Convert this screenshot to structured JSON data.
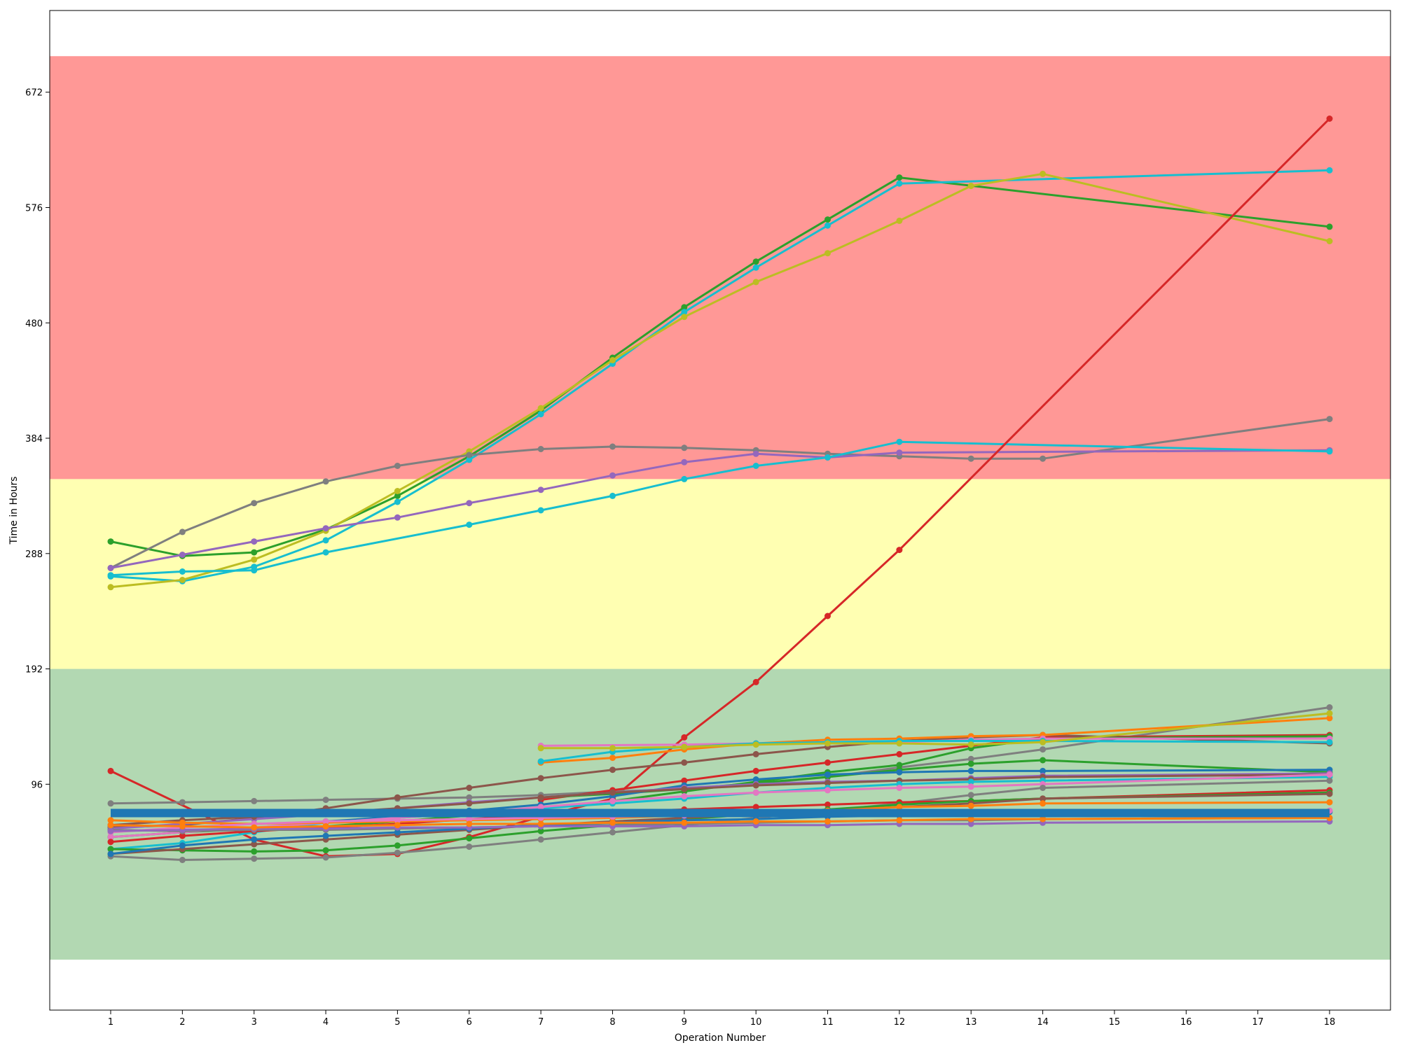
{
  "chart_data": {
    "type": "line",
    "title": "",
    "xlabel": "Operation Number",
    "ylabel": "Time in Hours",
    "xlim": [
      0.15,
      18.85
    ],
    "ylim": [
      -92,
      740
    ],
    "x_ticks": [
      1,
      2,
      3,
      4,
      5,
      6,
      7,
      8,
      9,
      10,
      11,
      12,
      13,
      14,
      15,
      16,
      17,
      18
    ],
    "y_ticks": [
      96,
      192,
      288,
      384,
      480,
      576,
      672
    ],
    "grid": false,
    "legend": "none",
    "bands": [
      {
        "y0": -50,
        "y1": 192,
        "color": "#b2d8b2"
      },
      {
        "y0": 192,
        "y1": 350,
        "color": "#ffffb2"
      },
      {
        "y0": 350,
        "y1": 702,
        "color": "#ff9896"
      }
    ],
    "threshold_line": {
      "y": 72,
      "x0": 1,
      "x1": 18,
      "color": "#1f77b4"
    },
    "series": [
      {
        "color": "#2ca02c",
        "x": [
          1,
          2,
          3,
          4,
          5,
          6,
          7,
          8,
          9,
          10,
          11,
          12,
          18
        ],
        "values": [
          298,
          286,
          289,
          308,
          336,
          369,
          407,
          451,
          493,
          531,
          566,
          601,
          560
        ]
      },
      {
        "color": "#17becf",
        "x": [
          1,
          2,
          3,
          4,
          5,
          6,
          7,
          8,
          9,
          10,
          11,
          12,
          18
        ],
        "values": [
          269,
          265,
          277,
          299,
          331,
          366,
          404,
          446,
          489,
          526,
          561,
          596,
          607
        ]
      },
      {
        "color": "#bcbd22",
        "x": [
          1,
          2,
          3,
          4,
          5,
          6,
          7,
          8,
          9,
          10,
          11,
          12,
          13,
          14,
          18
        ],
        "values": [
          260,
          266,
          283,
          307,
          340,
          373,
          409,
          449,
          485,
          514,
          538,
          565,
          594,
          604,
          548
        ]
      },
      {
        "color": "#7f7f7f",
        "x": [
          1,
          2,
          3,
          4,
          5,
          6,
          7,
          8,
          9,
          10,
          11,
          12,
          13,
          14,
          18
        ],
        "values": [
          276,
          306,
          330,
          348,
          361,
          370,
          375,
          377,
          376,
          374,
          371,
          369,
          367,
          367,
          400
        ]
      },
      {
        "color": "#9467bd",
        "x": [
          1,
          2,
          3,
          4,
          5,
          6,
          7,
          8,
          9,
          10,
          11,
          12,
          18
        ],
        "values": [
          276,
          287,
          298,
          309,
          318,
          330,
          341,
          353,
          364,
          371,
          368,
          372,
          374
        ]
      },
      {
        "color": "#17becf",
        "x": [
          1,
          2,
          3,
          4,
          6,
          7,
          8,
          9,
          10,
          11,
          12,
          18
        ],
        "values": [
          270,
          273,
          274,
          289,
          312,
          324,
          336,
          350,
          361,
          368,
          381,
          373
        ]
      },
      {
        "color": "#d62728",
        "x": [
          1,
          3,
          4,
          5,
          6,
          7,
          8,
          9,
          10,
          11,
          12,
          18
        ],
        "values": [
          107,
          50,
          36,
          38,
          52,
          69,
          84,
          135,
          181,
          236,
          291,
          650
        ]
      },
      {
        "color": "#7f7f7f",
        "x": [
          1,
          2,
          3,
          4,
          5,
          6,
          7,
          8,
          9,
          10,
          11,
          12,
          13,
          14,
          18
        ],
        "values": [
          80,
          81,
          82,
          83,
          84,
          85,
          87,
          90,
          92,
          96,
          102,
          110,
          117,
          125,
          160
        ]
      },
      {
        "color": "#d62728",
        "x": [
          7,
          8,
          9,
          10,
          11,
          12,
          13,
          14,
          18
        ],
        "values": [
          83,
          91,
          99,
          107,
          114,
          121,
          128,
          135,
          137
        ]
      },
      {
        "color": "#8c564b",
        "x": [
          1,
          2,
          3,
          4,
          5,
          6,
          7,
          8,
          9,
          10,
          11,
          12,
          13,
          14,
          18
        ],
        "values": [
          60,
          62,
          68,
          76,
          85,
          93,
          101,
          108,
          114,
          121,
          127,
          132,
          135,
          137,
          130
        ]
      },
      {
        "color": "#2ca02c",
        "x": [
          7,
          8,
          9,
          10,
          11,
          12,
          13,
          14,
          18
        ],
        "values": [
          85,
          88,
          92,
          97,
          102,
          108,
          113,
          116,
          106
        ]
      },
      {
        "color": "#2ca02c",
        "x": [
          1,
          2,
          3,
          4,
          5,
          6,
          7,
          8,
          9,
          10,
          11,
          12,
          13,
          14,
          18
        ],
        "values": [
          52,
          56,
          59,
          61,
          65,
          70,
          76,
          82,
          90,
          98,
          106,
          112,
          126,
          134,
          136
        ]
      },
      {
        "color": "#ff7f0e",
        "x": [
          7,
          8,
          9,
          10,
          11,
          12,
          13,
          14,
          18
        ],
        "values": [
          114,
          118,
          125,
          130,
          133,
          134,
          136,
          137,
          151
        ]
      },
      {
        "color": "#e377c2",
        "x": [
          7,
          9,
          10,
          11,
          12,
          13,
          14,
          18
        ],
        "values": [
          128,
          129,
          130,
          130,
          131,
          133,
          134,
          134
        ]
      },
      {
        "color": "#17becf",
        "x": [
          7,
          8,
          9,
          10,
          11,
          12,
          13,
          14,
          18
        ],
        "values": [
          115,
          123,
          127,
          130,
          131,
          132,
          132,
          132,
          131
        ]
      },
      {
        "color": "#bcbd22",
        "x": [
          7,
          8,
          9,
          10,
          11,
          12,
          13,
          14,
          18
        ],
        "values": [
          126,
          126,
          127,
          129,
          130,
          130,
          129,
          131,
          155
        ]
      },
      {
        "color": "#1f77b4",
        "x": [
          4,
          5,
          6,
          7,
          8,
          9,
          10,
          11,
          12,
          13,
          14,
          18
        ],
        "values": [
          65,
          69,
          74,
          79,
          86,
          95,
          100,
          104,
          106,
          107,
          107,
          108
        ]
      },
      {
        "color": "#9467bd",
        "x": [
          1,
          2,
          3,
          4,
          5,
          6,
          7,
          8,
          9,
          10,
          11,
          12,
          13,
          14,
          18
        ],
        "values": [
          59,
          63,
          67,
          71,
          76,
          81,
          85,
          89,
          93,
          96,
          98,
          99,
          101,
          103,
          105
        ]
      },
      {
        "color": "#8c564b",
        "x": [
          1,
          2,
          3,
          4,
          5,
          6,
          7,
          8,
          9,
          10,
          11,
          12,
          13,
          14,
          18
        ],
        "values": [
          62,
          66,
          69,
          72,
          76,
          80,
          85,
          89,
          92,
          95,
          97,
          99,
          100,
          102,
          104
        ]
      },
      {
        "color": "#17becf",
        "x": [
          1,
          2,
          3,
          4,
          5,
          6,
          7,
          8,
          9,
          10,
          11,
          12,
          13,
          14,
          18
        ],
        "values": [
          42,
          47,
          56,
          64,
          68,
          72,
          76,
          80,
          84,
          89,
          93,
          96,
          98,
          99,
          102
        ]
      },
      {
        "color": "#e377c2",
        "x": [
          1,
          2,
          3,
          4,
          5,
          6,
          7,
          8,
          9,
          10,
          11,
          12,
          13,
          14,
          18
        ],
        "values": [
          52,
          56,
          60,
          64,
          68,
          72,
          77,
          82,
          86,
          89,
          91,
          93,
          94,
          96,
          104
        ]
      },
      {
        "color": "#7f7f7f",
        "x": [
          1,
          2,
          3,
          4,
          5,
          6,
          7,
          8,
          9,
          10,
          11,
          12,
          13,
          14,
          18
        ],
        "values": [
          36,
          33,
          34,
          35,
          39,
          44,
          50,
          56,
          62,
          68,
          74,
          80,
          87,
          93,
          99
        ]
      },
      {
        "color": "#d62728",
        "x": [
          1,
          2,
          3,
          4,
          5,
          6,
          7,
          8,
          9,
          10,
          11,
          12,
          13,
          14,
          18
        ],
        "values": [
          48,
          53,
          57,
          60,
          63,
          67,
          70,
          73,
          75,
          77,
          79,
          81,
          82,
          84,
          91
        ]
      },
      {
        "color": "#2ca02c",
        "x": [
          1,
          2,
          3,
          4,
          5,
          6,
          7,
          8,
          9,
          10,
          11,
          12,
          13,
          14,
          18
        ],
        "values": [
          42,
          41,
          40,
          41,
          45,
          51,
          57,
          62,
          67,
          71,
          75,
          79,
          82,
          84,
          89
        ]
      },
      {
        "color": "#8c564b",
        "x": [
          1,
          2,
          3,
          4,
          5,
          6,
          7,
          8,
          9,
          10,
          11,
          12,
          13,
          14,
          18
        ],
        "values": [
          38,
          42,
          46,
          50,
          54,
          58,
          62,
          65,
          68,
          71,
          74,
          77,
          80,
          84,
          88
        ]
      },
      {
        "color": "#ff7f0e",
        "x": [
          1,
          2,
          3,
          4,
          5,
          6,
          7,
          8,
          9,
          10,
          11,
          12,
          13,
          14,
          18
        ],
        "values": [
          66,
          64,
          63,
          64,
          65,
          66,
          67,
          68,
          70,
          72,
          74,
          77,
          78,
          80,
          81
        ]
      },
      {
        "color": "#7f7f7f",
        "x": [
          1,
          2,
          3,
          4,
          5,
          6,
          7,
          8,
          9,
          10,
          11,
          12,
          13,
          14,
          18
        ],
        "values": [
          58,
          57,
          58,
          58,
          59,
          60,
          61,
          62,
          63,
          64,
          65,
          66,
          66,
          67,
          68
        ]
      },
      {
        "color": "#1f77b4",
        "x": [
          1,
          2,
          3,
          4,
          5,
          6,
          7,
          8,
          9,
          10,
          11,
          12,
          13,
          14,
          18
        ],
        "values": [
          38,
          45,
          50,
          53,
          56,
          59,
          62,
          64,
          66,
          67,
          69,
          70,
          71,
          72,
          73
        ]
      },
      {
        "color": "#e377c2",
        "x": [
          1,
          2,
          3,
          4,
          5,
          6,
          7,
          8,
          9,
          10,
          11,
          12,
          13,
          14,
          18
        ],
        "values": [
          56,
          60,
          63,
          65,
          66,
          67,
          68,
          69,
          70,
          71,
          71,
          72,
          72,
          73,
          74
        ]
      },
      {
        "color": "#9467bd",
        "x": [
          1,
          2,
          3,
          4,
          5,
          6,
          7,
          8,
          9,
          10,
          11,
          12,
          13,
          14,
          18
        ],
        "values": [
          57,
          58,
          59,
          59,
          60,
          60,
          61,
          61,
          61,
          62,
          62,
          63,
          63,
          64,
          65
        ]
      },
      {
        "color": "#ff7f0e",
        "x": [
          1,
          2,
          3,
          4,
          5,
          6,
          7,
          8,
          9,
          10,
          11,
          12,
          13,
          14,
          18
        ],
        "values": [
          62,
          61,
          60,
          61,
          62,
          63,
          63,
          64,
          64,
          65,
          65,
          66,
          67,
          67,
          68
        ]
      }
    ]
  }
}
